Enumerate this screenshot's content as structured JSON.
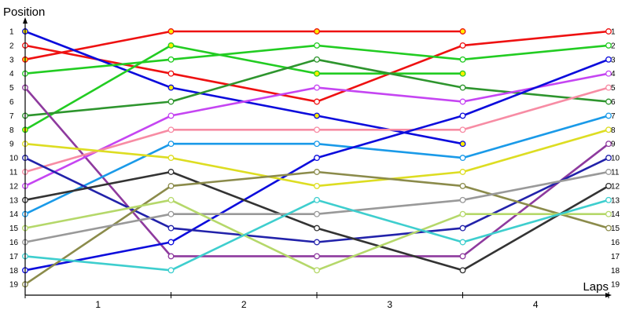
{
  "chart_data": {
    "type": "line",
    "title": "",
    "ylabel": "Position",
    "xlabel": "Laps",
    "x": [
      0,
      1,
      2,
      3,
      4
    ],
    "x_tick_labels": [
      "1",
      "2",
      "3",
      "4"
    ],
    "ylim": [
      1,
      19
    ],
    "y_tick_labels": [
      "1",
      "2",
      "3",
      "4",
      "5",
      "6",
      "7",
      "8",
      "9",
      "10",
      "11",
      "12",
      "13",
      "14",
      "15",
      "16",
      "17",
      "18",
      "19"
    ],
    "right_tick_labels": [
      "1",
      "2",
      "3",
      "4",
      "5",
      "6",
      "7",
      "8",
      "9",
      "10",
      "11",
      "12",
      "13",
      "14",
      "15",
      "16",
      "17",
      "18",
      "19"
    ],
    "y_inverted": true,
    "grid": false,
    "legend": "none",
    "pit_marker_color": "#ffee00",
    "series": [
      {
        "color": "#ee1111",
        "values": [
          3,
          1,
          1,
          1,
          null
        ],
        "pit": [
          true,
          true,
          true,
          true,
          false
        ]
      },
      {
        "color": "#ee1111",
        "values": [
          2,
          4,
          6,
          2,
          1
        ],
        "pit": [
          false,
          false,
          false,
          false,
          false
        ]
      },
      {
        "color": "#0c0cdc",
        "values": [
          1,
          5,
          7,
          9,
          null
        ],
        "pit": [
          true,
          true,
          true,
          true,
          false
        ]
      },
      {
        "color": "#22cc22",
        "values": [
          4,
          3,
          2,
          3,
          2
        ],
        "pit": [
          false,
          false,
          false,
          false,
          false
        ]
      },
      {
        "color": "#22cc22",
        "values": [
          8,
          2,
          4,
          4,
          null
        ],
        "pit": [
          true,
          true,
          true,
          true,
          false
        ]
      },
      {
        "color": "#2e952e",
        "values": [
          7,
          6,
          3,
          5,
          6
        ],
        "pit": [
          false,
          false,
          false,
          false,
          false
        ]
      },
      {
        "color": "#8e3a9e",
        "values": [
          5,
          17,
          17,
          17,
          9
        ],
        "pit": [
          false,
          false,
          false,
          false,
          false
        ]
      },
      {
        "color": "#c545f2",
        "values": [
          12,
          7,
          5,
          6,
          4
        ],
        "pit": [
          false,
          false,
          false,
          false,
          false
        ]
      },
      {
        "color": "#f78ca4",
        "values": [
          11,
          8,
          8,
          8,
          5
        ],
        "pit": [
          false,
          false,
          false,
          false,
          false
        ]
      },
      {
        "color": "#1a9ae8",
        "values": [
          14,
          9,
          9,
          10,
          7
        ],
        "pit": [
          false,
          false,
          false,
          false,
          false
        ]
      },
      {
        "color": "#0c0cdc",
        "values": [
          18,
          16,
          10,
          7,
          3
        ],
        "pit": [
          false,
          false,
          false,
          false,
          false
        ]
      },
      {
        "color": "#dddd22",
        "values": [
          9,
          10,
          12,
          11,
          8
        ],
        "pit": [
          false,
          false,
          false,
          false,
          false
        ]
      },
      {
        "color": "#2222aa",
        "values": [
          10,
          15,
          16,
          15,
          10
        ],
        "pit": [
          false,
          false,
          false,
          false,
          false
        ]
      },
      {
        "color": "#333333",
        "values": [
          13,
          11,
          15,
          18,
          12
        ],
        "pit": [
          false,
          false,
          false,
          false,
          false
        ]
      },
      {
        "color": "#8b8b4b",
        "values": [
          19,
          12,
          11,
          12,
          15
        ],
        "pit": [
          false,
          false,
          false,
          false,
          false
        ]
      },
      {
        "color": "#999999",
        "values": [
          16,
          14,
          14,
          13,
          11
        ],
        "pit": [
          false,
          false,
          false,
          false,
          false
        ]
      },
      {
        "color": "#b5d86a",
        "values": [
          15,
          13,
          18,
          14,
          14
        ],
        "pit": [
          false,
          false,
          false,
          false,
          false
        ]
      },
      {
        "color": "#3ecece",
        "values": [
          17,
          18,
          13,
          16,
          13
        ],
        "pit": [
          false,
          false,
          false,
          false,
          false
        ]
      }
    ]
  }
}
